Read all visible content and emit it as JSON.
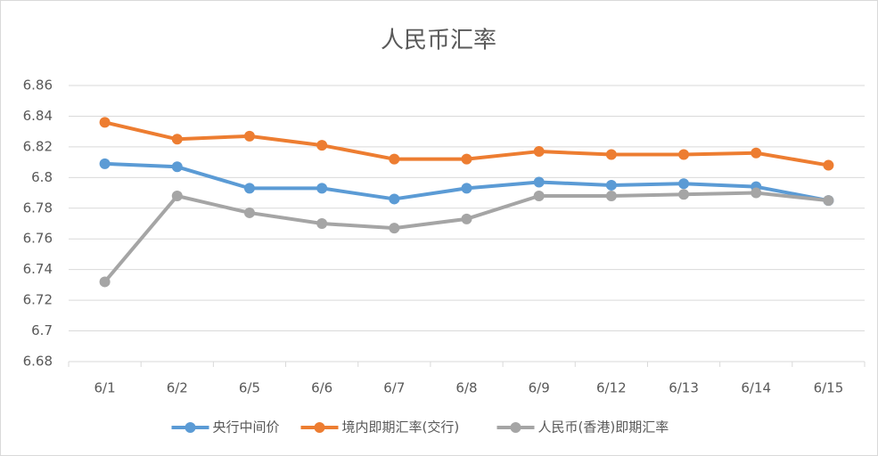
{
  "chart_data": {
    "type": "line",
    "title": "人民币汇率",
    "categories": [
      "6/1",
      "6/2",
      "6/5",
      "6/6",
      "6/7",
      "6/8",
      "6/9",
      "6/12",
      "6/13",
      "6/14",
      "6/15"
    ],
    "series": [
      {
        "name": "央行中间价",
        "color": "#5b9bd5",
        "values": [
          6.809,
          6.807,
          6.793,
          6.793,
          6.786,
          6.793,
          6.797,
          6.795,
          6.796,
          6.794,
          6.785
        ]
      },
      {
        "name": "境内即期汇率(交行)",
        "color": "#ed7d31",
        "values": [
          6.836,
          6.825,
          6.827,
          6.821,
          6.812,
          6.812,
          6.817,
          6.815,
          6.815,
          6.816,
          6.808
        ]
      },
      {
        "name": "人民币(香港)即期汇率",
        "color": "#a5a5a5",
        "values": [
          6.732,
          6.788,
          6.777,
          6.77,
          6.767,
          6.773,
          6.788,
          6.788,
          6.789,
          6.79,
          6.785
        ]
      }
    ],
    "ylim": [
      6.68,
      6.86
    ],
    "yticks": [
      6.68,
      6.7,
      6.72,
      6.74,
      6.76,
      6.78,
      6.8,
      6.82,
      6.84,
      6.86
    ],
    "grid": true,
    "legend": "bottom"
  }
}
